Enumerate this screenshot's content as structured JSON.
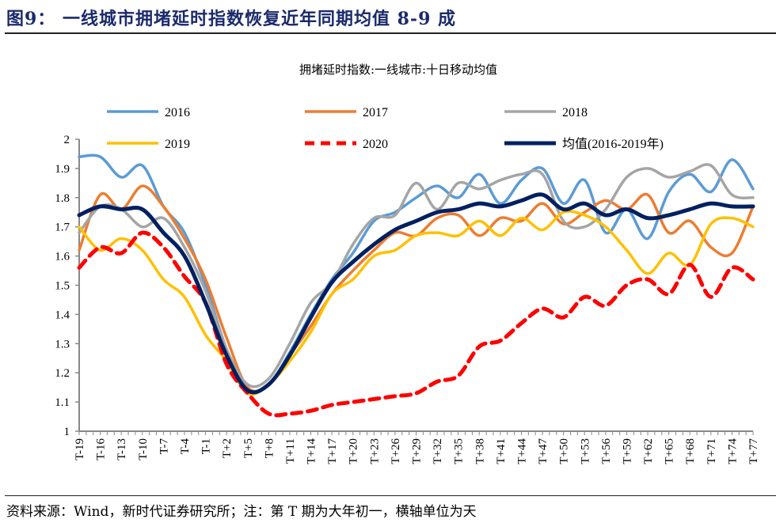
{
  "figure": {
    "title": "图9：  一线城市拥堵延时指数恢复近年同期均值 8-9 成",
    "source": "资料来源：Wind，新时代证券研究所；注：第 T 期为大年初一，横轴单位为天"
  },
  "chart_data": {
    "type": "line",
    "title": "拥堵延时指数:一线城市:十日移动均值",
    "xlabel": "",
    "ylabel": "",
    "ylim": [
      1,
      2
    ],
    "yticks": [
      "1",
      "1.1",
      "1.2",
      "1.3",
      "1.4",
      "1.5",
      "1.6",
      "1.7",
      "1.8",
      "1.9",
      "2"
    ],
    "grid": false,
    "legend_placement": "top",
    "x_range": [
      "T-19",
      "T+77"
    ],
    "categories": [
      "T-19",
      "T-16",
      "T-13",
      "T-10",
      "T-7",
      "T-4",
      "T-1",
      "T+2",
      "T+5",
      "T+8",
      "T+11",
      "T+14",
      "T+17",
      "T+20",
      "T+23",
      "T+26",
      "T+29",
      "T+32",
      "T+35",
      "T+38",
      "T+41",
      "T+44",
      "T+47",
      "T+50",
      "T+53",
      "T+56",
      "T+59",
      "T+62",
      "T+65",
      "T+68",
      "T+71",
      "T+74",
      "T+77"
    ],
    "series": [
      {
        "name": "2016",
        "color": "#5b9bd5",
        "style": "solid",
        "values": [
          1.94,
          1.94,
          1.87,
          1.91,
          1.77,
          1.68,
          1.5,
          1.28,
          1.14,
          1.16,
          1.27,
          1.4,
          1.52,
          1.61,
          1.72,
          1.75,
          1.8,
          1.84,
          1.8,
          1.88,
          1.78,
          1.86,
          1.9,
          1.78,
          1.86,
          1.68,
          1.76,
          1.66,
          1.82,
          1.88,
          1.82,
          1.93,
          1.83
        ]
      },
      {
        "name": "2017",
        "color": "#ed7d31",
        "style": "solid",
        "values": [
          1.62,
          1.81,
          1.76,
          1.84,
          1.77,
          1.66,
          1.52,
          1.32,
          1.15,
          1.16,
          1.26,
          1.36,
          1.47,
          1.55,
          1.62,
          1.68,
          1.67,
          1.73,
          1.74,
          1.67,
          1.73,
          1.72,
          1.78,
          1.71,
          1.75,
          1.79,
          1.76,
          1.81,
          1.68,
          1.72,
          1.63,
          1.61,
          1.77
        ]
      },
      {
        "name": "2018",
        "color": "#a5a5a5",
        "style": "solid",
        "values": [
          1.68,
          1.77,
          1.76,
          1.7,
          1.73,
          1.63,
          1.48,
          1.28,
          1.16,
          1.18,
          1.3,
          1.44,
          1.51,
          1.64,
          1.73,
          1.74,
          1.85,
          1.76,
          1.85,
          1.83,
          1.86,
          1.88,
          1.88,
          1.72,
          1.7,
          1.76,
          1.87,
          1.9,
          1.87,
          1.89,
          1.91,
          1.81,
          1.8
        ]
      },
      {
        "name": "2019",
        "color": "#ffc000",
        "style": "solid",
        "values": [
          1.7,
          1.62,
          1.66,
          1.62,
          1.52,
          1.46,
          1.33,
          1.24,
          1.13,
          1.16,
          1.24,
          1.34,
          1.47,
          1.52,
          1.6,
          1.62,
          1.67,
          1.68,
          1.67,
          1.72,
          1.67,
          1.73,
          1.69,
          1.75,
          1.74,
          1.7,
          1.62,
          1.54,
          1.61,
          1.57,
          1.71,
          1.73,
          1.7
        ]
      },
      {
        "name": "2020",
        "color": "#ff0000",
        "style": "dashed",
        "values": [
          1.56,
          1.63,
          1.61,
          1.68,
          1.63,
          1.53,
          1.44,
          1.23,
          1.13,
          1.06,
          1.06,
          1.07,
          1.09,
          1.1,
          1.11,
          1.12,
          1.13,
          1.17,
          1.19,
          1.29,
          1.31,
          1.37,
          1.42,
          1.39,
          1.46,
          1.43,
          1.5,
          1.52,
          1.47,
          1.57,
          1.46,
          1.56,
          1.52
        ]
      },
      {
        "name": "均值(2016-2019年)",
        "color": "#002060",
        "style": "solid-bold",
        "values": [
          1.74,
          1.77,
          1.76,
          1.76,
          1.68,
          1.6,
          1.44,
          1.26,
          1.14,
          1.16,
          1.26,
          1.39,
          1.51,
          1.58,
          1.64,
          1.69,
          1.72,
          1.75,
          1.76,
          1.78,
          1.77,
          1.79,
          1.81,
          1.76,
          1.78,
          1.74,
          1.76,
          1.73,
          1.74,
          1.76,
          1.78,
          1.77,
          1.77
        ]
      }
    ]
  }
}
